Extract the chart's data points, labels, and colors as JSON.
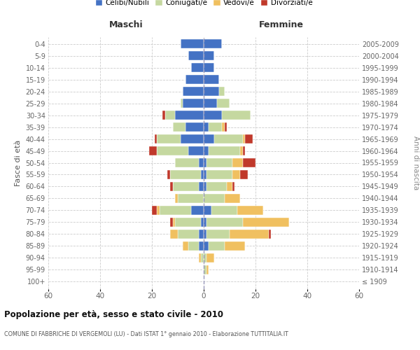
{
  "age_groups": [
    "100+",
    "95-99",
    "90-94",
    "85-89",
    "80-84",
    "75-79",
    "70-74",
    "65-69",
    "60-64",
    "55-59",
    "50-54",
    "45-49",
    "40-44",
    "35-39",
    "30-34",
    "25-29",
    "20-24",
    "15-19",
    "10-14",
    "5-9",
    "0-4"
  ],
  "birth_years": [
    "≤ 1909",
    "1910-1914",
    "1915-1919",
    "1920-1924",
    "1925-1929",
    "1930-1934",
    "1935-1939",
    "1940-1944",
    "1945-1949",
    "1950-1954",
    "1955-1959",
    "1960-1964",
    "1965-1969",
    "1970-1974",
    "1975-1979",
    "1980-1984",
    "1985-1989",
    "1990-1994",
    "1995-1999",
    "2000-2004",
    "2005-2009"
  ],
  "males": {
    "celibe": [
      0,
      0,
      0,
      2,
      2,
      1,
      5,
      0,
      2,
      1,
      2,
      6,
      9,
      7,
      11,
      8,
      8,
      7,
      5,
      6,
      9
    ],
    "coniugato": [
      0,
      0,
      1,
      4,
      8,
      10,
      12,
      10,
      10,
      12,
      9,
      12,
      9,
      5,
      4,
      1,
      0,
      0,
      0,
      0,
      0
    ],
    "vedovo": [
      0,
      0,
      1,
      2,
      3,
      1,
      1,
      1,
      0,
      0,
      0,
      0,
      0,
      0,
      0,
      0,
      0,
      0,
      0,
      0,
      0
    ],
    "divorziato": [
      0,
      0,
      0,
      0,
      0,
      1,
      2,
      0,
      1,
      1,
      0,
      3,
      1,
      0,
      1,
      0,
      0,
      0,
      0,
      0,
      0
    ]
  },
  "females": {
    "nubile": [
      0,
      0,
      0,
      2,
      1,
      1,
      3,
      0,
      1,
      1,
      1,
      2,
      4,
      2,
      7,
      5,
      6,
      6,
      4,
      4,
      7
    ],
    "coniugata": [
      0,
      1,
      1,
      6,
      9,
      14,
      10,
      8,
      8,
      10,
      10,
      12,
      11,
      5,
      11,
      5,
      2,
      0,
      0,
      0,
      0
    ],
    "vedova": [
      0,
      1,
      3,
      8,
      15,
      18,
      10,
      6,
      2,
      3,
      4,
      1,
      1,
      1,
      0,
      0,
      0,
      0,
      0,
      0,
      0
    ],
    "divorziata": [
      0,
      0,
      0,
      0,
      1,
      0,
      0,
      0,
      1,
      3,
      5,
      1,
      3,
      1,
      0,
      0,
      0,
      0,
      0,
      0,
      0
    ]
  },
  "colors": {
    "celibe": "#4472c4",
    "coniugato": "#c5d8a0",
    "vedovo": "#f0c060",
    "divorziato": "#c0392b"
  },
  "xlim": [
    -60,
    60
  ],
  "xticks": [
    -60,
    -40,
    -20,
    0,
    20,
    40,
    60
  ],
  "xticklabels": [
    "60",
    "40",
    "20",
    "0",
    "20",
    "40",
    "60"
  ],
  "xlabel_left": "Maschi",
  "xlabel_right": "Femmine",
  "ylabel_left": "Fasce di età",
  "ylabel_right": "Anni di nascita",
  "title": "Popolazione per età, sesso e stato civile - 2010",
  "subtitle": "COMUNE DI FABBRICHE DI VERGEMOLI (LU) - Dati ISTAT 1° gennaio 2010 - Elaborazione TUTTITALIA.IT",
  "legend_labels": [
    "Celibi/Nubili",
    "Coniugati/e",
    "Vedovi/e",
    "Divorziati/e"
  ]
}
